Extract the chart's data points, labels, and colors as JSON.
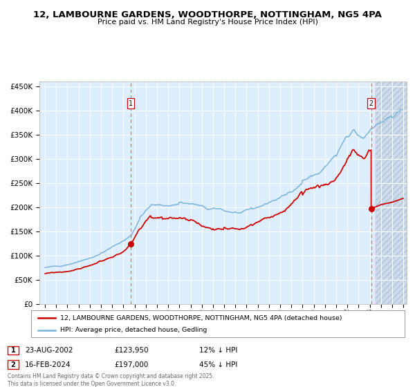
{
  "title_line1": "12, LAMBOURNE GARDENS, WOODTHORPE, NOTTINGHAM, NG5 4PA",
  "title_line2": "Price paid vs. HM Land Registry's House Price Index (HPI)",
  "legend_line1": "12, LAMBOURNE GARDENS, WOODTHORPE, NOTTINGHAM, NG5 4PA (detached house)",
  "legend_line2": "HPI: Average price, detached house, Gedling",
  "marker1_label": "1",
  "marker1_date": "23-AUG-2002",
  "marker1_price": "£123,950",
  "marker1_hpi": "12% ↓ HPI",
  "marker2_label": "2",
  "marker2_date": "16-FEB-2024",
  "marker2_price": "£197,000",
  "marker2_hpi": "45% ↓ HPI",
  "footer": "Contains HM Land Registry data © Crown copyright and database right 2025.\nThis data is licensed under the Open Government Licence v3.0.",
  "hpi_color": "#7ab3d9",
  "price_color": "#cc0000",
  "marker_color": "#cc0000",
  "vline_color": "#e87070",
  "plot_bg": "#ddeeff",
  "grid_color": "#ffffff",
  "ylim": [
    0,
    460000
  ],
  "yticks": [
    0,
    50000,
    100000,
    150000,
    200000,
    250000,
    300000,
    350000,
    400000,
    450000
  ],
  "marker1_x": 2002.646,
  "marker1_y": 123950,
  "marker2_x": 2024.123,
  "marker2_y": 197000,
  "xmin": 1994.5,
  "xmax": 2027.3
}
